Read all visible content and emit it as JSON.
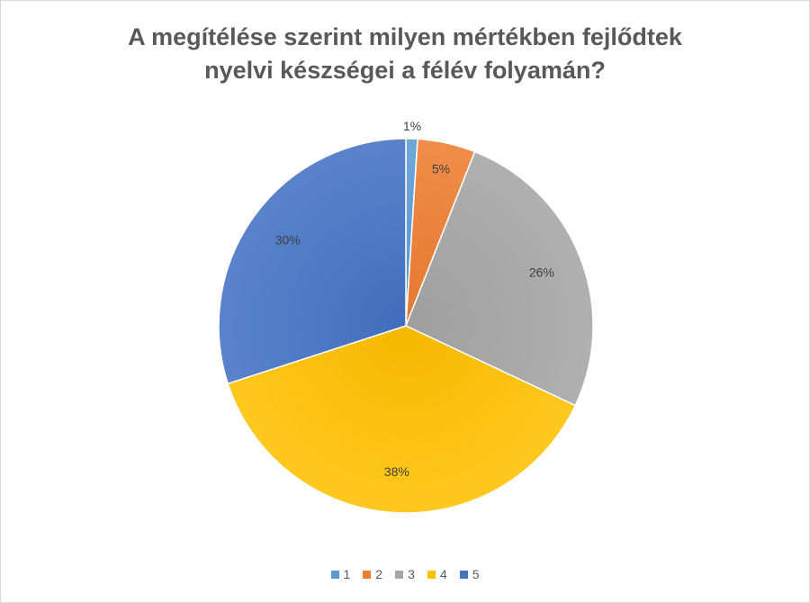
{
  "chart_data": {
    "type": "pie",
    "title_lines": [
      "A megítélése szerint milyen mértékben fejlődtek",
      "nyelvi készségei a félév folyamán?"
    ],
    "categories": [
      "1",
      "2",
      "3",
      "4",
      "5"
    ],
    "values": [
      1,
      5,
      26,
      38,
      30
    ],
    "labels": [
      "1%",
      "5%",
      "26%",
      "38%",
      "30%"
    ],
    "colors": [
      "#5b9bd5",
      "#ed7d31",
      "#a5a5a5",
      "#ffc000",
      "#4472c4"
    ],
    "legend_position": "bottom"
  }
}
